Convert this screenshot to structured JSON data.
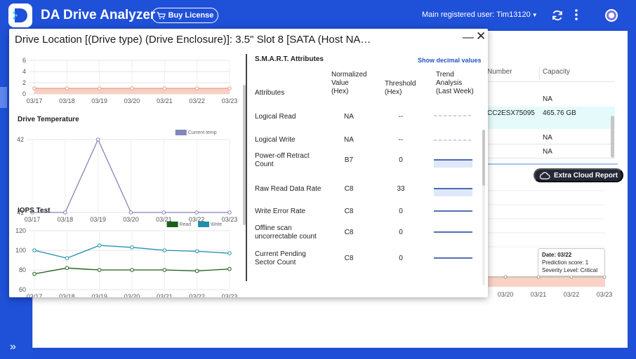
{
  "header": {
    "app_title": "DA Drive Analyzer",
    "buy_license_label": "Buy License",
    "user_label": "Main registered user: Tim13120"
  },
  "background": {
    "col_number": "Number",
    "col_capacity": "Capacity",
    "rows": [
      {
        "number": "",
        "capacity": "NA"
      },
      {
        "number": "CC2ESX75095",
        "capacity": "465.76 GB"
      },
      {
        "number": "",
        "capacity": "NA"
      },
      {
        "number": "",
        "capacity": "NA"
      }
    ],
    "cloud_report_label": "Extra Cloud Report",
    "x_ticks": [
      "03/20",
      "03/21",
      "03/22",
      "03/23"
    ],
    "tooltip": {
      "date": "Date: 03/22",
      "score": "Prediction score: 1",
      "severity": "Severity Level: Critical"
    }
  },
  "modal": {
    "title": "Drive Location [(Drive type) (Drive Enclosure)]: 3.5\" Slot 8 [SATA (Host NA…",
    "smart_title": "S.M.A.R.T. Attributes",
    "show_decimal_label": "Show decimal values",
    "columns": {
      "attributes": "Attributes",
      "normalized": [
        "Normalized",
        "Value",
        "(Hex)"
      ],
      "threshold": [
        "Threshold",
        "(Hex)"
      ],
      "trend": [
        "Trend",
        "Analysis",
        "(Last Week)"
      ]
    },
    "attributes": [
      {
        "name": [
          "Logical Read"
        ],
        "value": "NA",
        "threshold": "--",
        "trend": "dashed-high"
      },
      {
        "name": [
          "Logical Write"
        ],
        "value": "NA",
        "threshold": "--",
        "trend": "dashed-low"
      },
      {
        "name": [
          "Power-off Retract",
          "Count"
        ],
        "value": "B7",
        "threshold": "0",
        "trend": "filled"
      },
      {
        "name": [
          "Raw Read Data Rate"
        ],
        "value": "C8",
        "threshold": "33",
        "trend": "filled"
      },
      {
        "name": [
          "Write Error Rate"
        ],
        "value": "C8",
        "threshold": "0",
        "trend": "line"
      },
      {
        "name": [
          "Offline scan",
          "uncorrectable count"
        ],
        "value": "C8",
        "threshold": "0",
        "trend": "line"
      },
      {
        "name": [
          "Current Pending",
          "Sector Count"
        ],
        "value": "C8",
        "threshold": "0",
        "trend": "line"
      }
    ],
    "trend_colors": {
      "line": "#1c3f9c",
      "dashed": "#9aa0d6",
      "fill": "#dfe8fb"
    }
  },
  "chart_data": [
    {
      "type": "line",
      "title": "",
      "categories": [
        "03/17",
        "03/18",
        "03/19",
        "03/20",
        "03/21",
        "03/22",
        "03/23"
      ],
      "y_ticks": [
        0,
        2,
        4,
        6
      ],
      "ylim": [
        0,
        6
      ],
      "series": [
        {
          "name": "",
          "values": [
            1,
            1,
            1,
            1,
            1,
            1,
            1
          ],
          "color": "#e89a88"
        }
      ],
      "threshold_band": [
        0,
        1
      ]
    },
    {
      "type": "line",
      "title": "Drive Temperature",
      "categories": [
        "03/17",
        "03/18",
        "03/19",
        "03/20",
        "03/21",
        "03/22",
        "03/23"
      ],
      "y_ticks": [
        41,
        42
      ],
      "ylim": [
        41,
        42
      ],
      "series": [
        {
          "name": "Current temp",
          "values": [
            41,
            41,
            42,
            41,
            41,
            41,
            41
          ],
          "color": "#8286b8"
        }
      ],
      "legend": "top-right"
    },
    {
      "type": "line",
      "title": "IOPS Test",
      "categories": [
        "03/17",
        "03/18",
        "03/19",
        "03/20",
        "03/21",
        "03/22",
        "03/23"
      ],
      "y_ticks": [
        60,
        80,
        100,
        120
      ],
      "ylim": [
        60,
        120
      ],
      "series": [
        {
          "name": "Read",
          "values": [
            76,
            82,
            80,
            80,
            80,
            79,
            81
          ],
          "color": "#1a5e1a"
        },
        {
          "name": "Write",
          "values": [
            100,
            92,
            105,
            103,
            100,
            99,
            97
          ],
          "color": "#1f8fa8"
        }
      ],
      "legend": "top-right"
    }
  ]
}
